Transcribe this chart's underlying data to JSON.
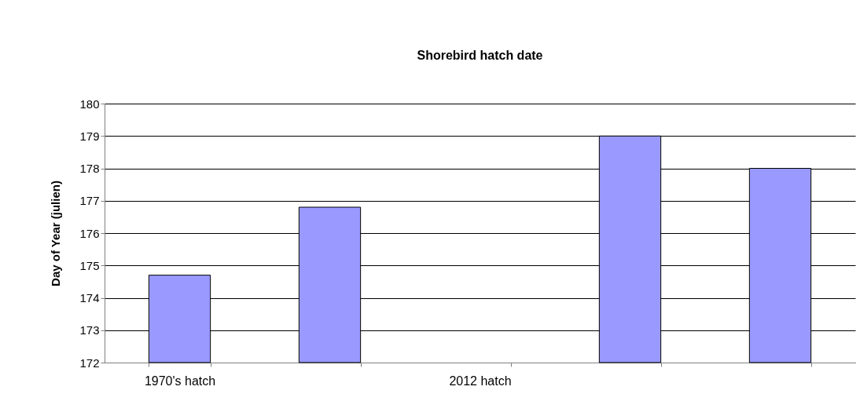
{
  "chart_data": {
    "type": "bar",
    "title": "Shorebird hatch date",
    "ylabel": "Day of Year (julien)",
    "categories": [
      "1970's hatch",
      null,
      "2012 hatch",
      null,
      null
    ],
    "values": [
      174.7,
      176.8,
      null,
      179,
      178
    ],
    "color": "#9999ff",
    "ylim": [
      172,
      180
    ],
    "yticks": [
      172,
      173,
      174,
      175,
      176,
      177,
      178,
      179,
      180
    ],
    "grid": "y"
  }
}
